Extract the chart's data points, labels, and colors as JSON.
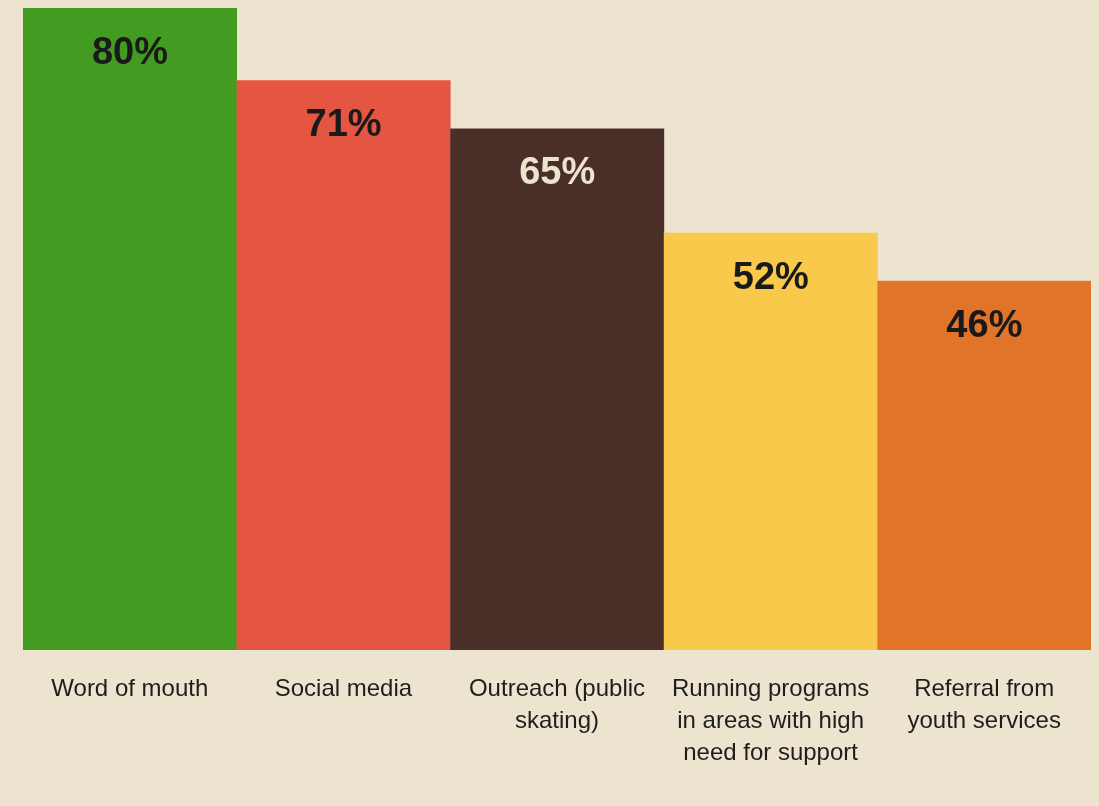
{
  "chart_data": {
    "type": "bar",
    "categories": [
      "Word of mouth",
      "Social media",
      "Outreach (public skating)",
      "Running programs in areas with high need for support",
      "Referral from youth services"
    ],
    "values": [
      80,
      71,
      65,
      52,
      46
    ],
    "value_labels": [
      "80%",
      "71%",
      "65%",
      "52%",
      "46%"
    ],
    "colors": [
      "#439b22",
      "#e45642",
      "#4a2f29",
      "#f8c94a",
      "#e0752a"
    ]
  }
}
